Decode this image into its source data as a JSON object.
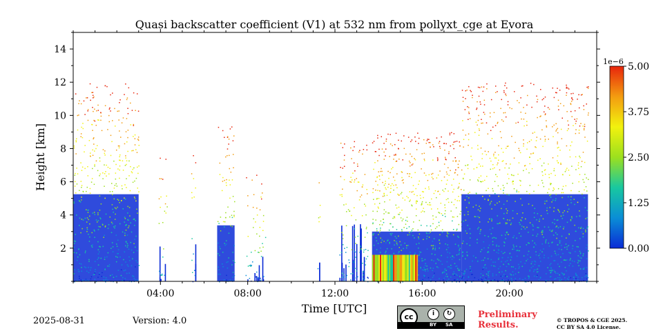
{
  "chart_data": {
    "type": "heatmap",
    "title": "Quasi backscatter coefficient (V1) at 532 nm from pollyxt_cge at Evora",
    "xlabel": "Time [UTC]",
    "ylabel": "Height [km]",
    "xlim_hours": [
      0,
      24
    ],
    "ylim_km": [
      0,
      15
    ],
    "x_ticks": [
      {
        "hour": 4,
        "label": "04:00"
      },
      {
        "hour": 8,
        "label": "08:00"
      },
      {
        "hour": 12,
        "label": "12:00"
      },
      {
        "hour": 16,
        "label": "16:00"
      },
      {
        "hour": 20,
        "label": "20:00"
      }
    ],
    "y_ticks": [
      {
        "value": 2,
        "label": "2"
      },
      {
        "value": 4,
        "label": "4"
      },
      {
        "value": 6,
        "label": "6"
      },
      {
        "value": 8,
        "label": "8"
      },
      {
        "value": 10,
        "label": "10"
      },
      {
        "value": 12,
        "label": "12"
      },
      {
        "value": 14,
        "label": "14"
      }
    ],
    "colorbar": {
      "multiplier": "1e−6",
      "range": [
        0,
        5
      ],
      "ticks": [
        {
          "value": 0,
          "label": "0.00"
        },
        {
          "value": 1.25,
          "label": "1.25"
        },
        {
          "value": 2.5,
          "label": "2.50"
        },
        {
          "value": 3.75,
          "label": "3.75"
        },
        {
          "value": 5,
          "label": "5.00"
        }
      ],
      "colors": [
        "#0a2bd6",
        "#0a8ed6",
        "#18c8a0",
        "#9ce01e",
        "#f2f20e",
        "#f39c10",
        "#e8250c"
      ]
    },
    "signal_periods": [
      {
        "start": 0.0,
        "end": 3.0,
        "top_km": 7.0,
        "density": 0.9,
        "kind": "dense"
      },
      {
        "start": 3.9,
        "end": 4.3,
        "top_km": 2.5,
        "density": 0.3,
        "kind": "sparse"
      },
      {
        "start": 5.4,
        "end": 5.6,
        "top_km": 3.0,
        "density": 0.4,
        "kind": "sparse"
      },
      {
        "start": 6.6,
        "end": 7.4,
        "top_km": 4.5,
        "density": 0.6,
        "kind": "dense"
      },
      {
        "start": 7.9,
        "end": 8.8,
        "top_km": 1.5,
        "density": 0.3,
        "kind": "sparse"
      },
      {
        "start": 11.2,
        "end": 11.3,
        "top_km": 1.5,
        "density": 0.3,
        "kind": "sparse"
      },
      {
        "start": 12.2,
        "end": 13.5,
        "top_km": 3.5,
        "density": 0.5,
        "kind": "sparse"
      },
      {
        "start": 13.7,
        "end": 17.8,
        "top_km": 4.0,
        "density": 0.9,
        "kind": "dense"
      },
      {
        "start": 17.8,
        "end": 23.6,
        "top_km": 7.0,
        "density": 0.95,
        "kind": "dense"
      }
    ]
  },
  "footer": {
    "date": "2025-08-31",
    "version": "Version: 4.0",
    "cc_by": "BY",
    "cc_sa": "SA",
    "preliminary_line1": "Preliminary",
    "preliminary_line2": "Results.",
    "license_line1": "© TROPOS & CGE 2025.",
    "license_line2": "CC BY SA 4.0 License."
  }
}
